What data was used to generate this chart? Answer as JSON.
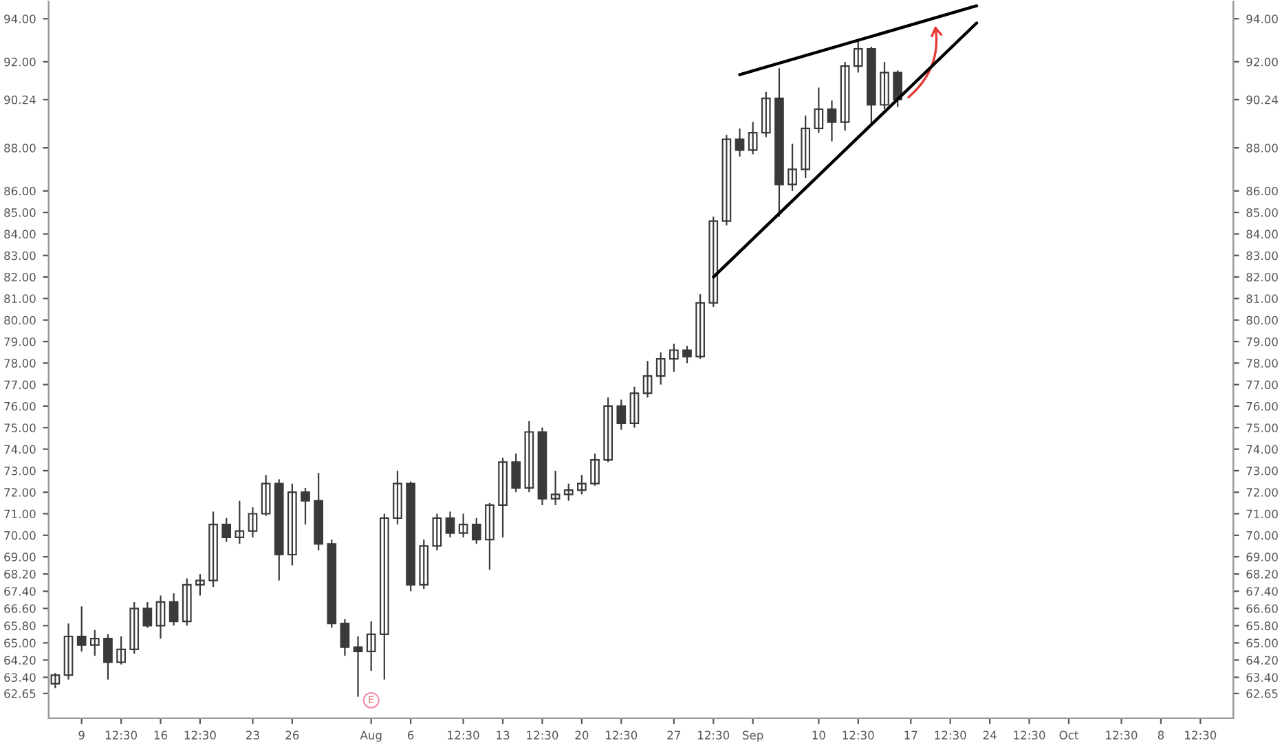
{
  "chart_data": {
    "type": "candlestick",
    "categories": [
      null,
      null,
      "9",
      null,
      null,
      "12:30",
      null,
      null,
      "16",
      null,
      null,
      "12:30",
      null,
      null,
      null,
      "23",
      null,
      null,
      "26",
      null,
      null,
      null,
      null,
      null,
      "Aug",
      null,
      null,
      "6",
      null,
      null,
      null,
      "12:30",
      null,
      null,
      "13",
      null,
      null,
      "12:30",
      null,
      null,
      "20",
      null,
      null,
      "12:30",
      null,
      null,
      null,
      "27",
      null,
      null,
      "12:30",
      null,
      null,
      "Sep",
      null,
      null,
      null,
      null,
      "10",
      null,
      null,
      "12:30",
      null,
      null,
      null,
      "17",
      null,
      null,
      "12:30",
      null,
      null,
      "24",
      null,
      null,
      "12:30",
      null,
      null,
      "Oct",
      null,
      null,
      null,
      "12:30",
      null,
      null,
      "8",
      null,
      null,
      "12:30",
      null,
      null
    ],
    "series": [
      {
        "color": "#3a3a3a",
        "ohlc": [
          [
            63.1,
            63.6,
            62.9,
            63.5
          ],
          [
            63.5,
            65.9,
            63.3,
            65.3
          ],
          [
            65.3,
            66.7,
            64.6,
            64.9
          ],
          [
            64.9,
            65.6,
            64.4,
            65.2
          ],
          [
            65.2,
            65.4,
            63.3,
            64.1
          ],
          [
            64.1,
            65.3,
            64.0,
            64.7
          ],
          [
            64.7,
            66.9,
            64.5,
            66.6
          ],
          [
            66.6,
            66.9,
            65.7,
            65.8
          ],
          [
            65.8,
            67.2,
            65.2,
            66.9
          ],
          [
            66.9,
            67.3,
            65.8,
            66.0
          ],
          [
            66.0,
            68.0,
            65.8,
            67.7
          ],
          [
            67.7,
            68.2,
            67.2,
            67.9
          ],
          [
            67.9,
            71.1,
            67.6,
            70.5
          ],
          [
            70.5,
            70.8,
            69.7,
            69.9
          ],
          [
            69.9,
            71.6,
            69.6,
            70.2
          ],
          [
            70.2,
            71.3,
            69.9,
            71.0
          ],
          [
            71.0,
            72.8,
            70.9,
            72.4
          ],
          [
            72.4,
            72.6,
            67.9,
            69.1
          ],
          [
            69.1,
            72.4,
            68.6,
            72.0
          ],
          [
            72.0,
            72.2,
            70.5,
            71.6
          ],
          [
            71.6,
            72.9,
            69.3,
            69.6
          ],
          [
            69.6,
            69.8,
            65.7,
            65.9
          ],
          [
            65.9,
            66.1,
            64.4,
            64.8
          ],
          [
            64.8,
            65.3,
            62.5,
            64.6
          ],
          [
            64.6,
            66.0,
            63.7,
            65.4
          ],
          [
            65.4,
            71.0,
            63.3,
            70.8
          ],
          [
            70.8,
            73.0,
            70.5,
            72.4
          ],
          [
            72.4,
            72.5,
            67.4,
            67.7
          ],
          [
            67.7,
            69.8,
            67.5,
            69.5
          ],
          [
            69.5,
            71.0,
            69.3,
            70.8
          ],
          [
            70.8,
            71.1,
            69.9,
            70.1
          ],
          [
            70.1,
            71.0,
            69.9,
            70.5
          ],
          [
            70.5,
            70.8,
            69.6,
            69.8
          ],
          [
            69.8,
            71.5,
            68.4,
            71.4
          ],
          [
            71.4,
            73.6,
            69.9,
            73.4
          ],
          [
            73.4,
            73.8,
            72.0,
            72.2
          ],
          [
            72.2,
            75.3,
            72.0,
            74.8
          ],
          [
            74.8,
            75.0,
            71.4,
            71.7
          ],
          [
            71.7,
            73.0,
            71.4,
            71.9
          ],
          [
            71.9,
            72.4,
            71.6,
            72.1
          ],
          [
            72.1,
            72.8,
            71.9,
            72.4
          ],
          [
            72.4,
            73.8,
            72.3,
            73.5
          ],
          [
            73.5,
            76.4,
            73.4,
            76.0
          ],
          [
            76.0,
            76.3,
            74.9,
            75.2
          ],
          [
            75.2,
            76.9,
            75.0,
            76.6
          ],
          [
            76.6,
            78.1,
            76.4,
            77.4
          ],
          [
            77.4,
            78.5,
            77.0,
            78.2
          ],
          [
            78.2,
            78.9,
            77.6,
            78.6
          ],
          [
            78.6,
            78.8,
            78.0,
            78.3
          ],
          [
            78.3,
            81.2,
            78.2,
            80.8
          ],
          [
            80.8,
            84.8,
            80.6,
            84.6
          ],
          [
            84.6,
            88.6,
            84.4,
            88.4
          ],
          [
            88.4,
            88.9,
            87.6,
            87.9
          ],
          [
            87.9,
            89.2,
            87.7,
            88.7
          ],
          [
            88.7,
            90.6,
            88.5,
            90.3
          ],
          [
            90.3,
            91.7,
            84.8,
            86.3
          ],
          [
            86.3,
            88.2,
            86.0,
            87.0
          ],
          [
            87.0,
            89.5,
            86.6,
            88.9
          ],
          [
            88.9,
            90.8,
            88.7,
            89.8
          ],
          [
            89.8,
            90.2,
            88.3,
            89.2
          ],
          [
            89.2,
            92.0,
            88.8,
            91.8
          ],
          [
            91.8,
            93.0,
            91.5,
            92.6
          ],
          [
            92.6,
            92.7,
            89.1,
            90.0
          ],
          [
            90.0,
            92.0,
            89.8,
            91.5
          ],
          [
            91.5,
            91.6,
            89.9,
            90.24
          ],
          null,
          null,
          null,
          null,
          null,
          null,
          null,
          null,
          null,
          null,
          null,
          null,
          null,
          null,
          null,
          null,
          null,
          null,
          null,
          null,
          null,
          null,
          null,
          null,
          null
        ]
      },
      {
        "type": "line",
        "color": "#000000",
        "values": [
          null,
          null,
          null,
          null,
          null,
          null,
          null,
          null,
          null,
          null,
          null,
          null,
          null,
          null,
          null,
          null,
          null,
          null,
          null,
          null,
          null,
          null,
          null,
          null,
          null,
          null,
          null,
          null,
          null,
          null,
          null,
          null,
          null,
          null,
          null,
          null,
          null,
          null,
          null,
          null,
          null,
          null,
          null,
          null,
          null,
          null,
          null,
          null,
          null,
          null,
          null,
          null,
          91.4,
          null,
          null,
          null,
          null,
          null,
          null,
          null,
          null,
          null,
          null,
          null,
          null,
          null,
          null,
          null,
          null,
          null,
          94.6,
          null,
          null,
          null,
          null,
          null,
          null,
          null,
          null,
          null,
          null,
          null,
          null,
          null,
          null,
          null,
          null,
          null,
          null,
          null
        ]
      },
      {
        "type": "line",
        "color": "#000000",
        "values": [
          null,
          null,
          null,
          null,
          null,
          null,
          null,
          null,
          null,
          null,
          null,
          null,
          null,
          null,
          null,
          null,
          null,
          null,
          null,
          null,
          null,
          null,
          null,
          null,
          null,
          null,
          null,
          null,
          null,
          null,
          null,
          null,
          null,
          null,
          null,
          null,
          null,
          null,
          null,
          null,
          null,
          null,
          null,
          null,
          null,
          null,
          null,
          null,
          null,
          null,
          82.0,
          null,
          null,
          null,
          null,
          null,
          null,
          null,
          null,
          null,
          null,
          null,
          null,
          null,
          null,
          null,
          null,
          null,
          null,
          null,
          93.8,
          null,
          null,
          null,
          null,
          null,
          null,
          null,
          null,
          null,
          null,
          null,
          null,
          null,
          null,
          null,
          null,
          null,
          null,
          null
        ]
      }
    ],
    "ylim": [
      61.5,
      94.8
    ],
    "yticks": [
      {
        "value": 94,
        "label": "94.00"
      },
      {
        "value": 92,
        "label": "92.00"
      },
      {
        "value": 90.24,
        "label": "90.24"
      },
      {
        "value": 88,
        "label": "88.00"
      },
      {
        "value": 86,
        "label": "86.00"
      },
      {
        "value": 85,
        "label": "85.00"
      },
      {
        "value": 84,
        "label": "84.00"
      },
      {
        "value": 83,
        "label": "83.00"
      },
      {
        "value": 82,
        "label": "82.00"
      },
      {
        "value": 81,
        "label": "81.00"
      },
      {
        "value": 80,
        "label": "80.00"
      },
      {
        "value": 79,
        "label": "79.00"
      },
      {
        "value": 78,
        "label": "78.00"
      },
      {
        "value": 77,
        "label": "77.00"
      },
      {
        "value": 76,
        "label": "76.00"
      },
      {
        "value": 75,
        "label": "75.00"
      },
      {
        "value": 74,
        "label": "74.00"
      },
      {
        "value": 73,
        "label": "73.00"
      },
      {
        "value": 72,
        "label": "72.00"
      },
      {
        "value": 71,
        "label": "71.00"
      },
      {
        "value": 70,
        "label": "70.00"
      },
      {
        "value": 69,
        "label": "69.00"
      },
      {
        "value": 68.2,
        "label": "68.20"
      },
      {
        "value": 67.4,
        "label": "67.40"
      },
      {
        "value": 66.6,
        "label": "66.60"
      },
      {
        "value": 65.8,
        "label": "65.80"
      },
      {
        "value": 65,
        "label": "65.00"
      },
      {
        "value": 64.2,
        "label": "64.20"
      },
      {
        "value": 63.4,
        "label": "63.40"
      },
      {
        "value": 62.65,
        "label": "62.65"
      }
    ],
    "y2lim": [
      61.5,
      94.8
    ],
    "y2ticks": [
      {
        "value": 94,
        "label": "94.00"
      },
      {
        "value": 92,
        "label": "92.00"
      },
      {
        "value": 90.24,
        "label": "90.24"
      },
      {
        "value": 88,
        "label": "88.00"
      },
      {
        "value": 86,
        "label": "86.00"
      },
      {
        "value": 85,
        "label": "85.00"
      },
      {
        "value": 84,
        "label": "84.00"
      },
      {
        "value": 83,
        "label": "83.00"
      },
      {
        "value": 82,
        "label": "82.00"
      },
      {
        "value": 81,
        "label": "81.00"
      },
      {
        "value": 80,
        "label": "80.00"
      },
      {
        "value": 79,
        "label": "79.00"
      },
      {
        "value": 78,
        "label": "78.00"
      },
      {
        "value": 77,
        "label": "77.00"
      },
      {
        "value": 76,
        "label": "76.00"
      },
      {
        "value": 75,
        "label": "75.00"
      },
      {
        "value": 74,
        "label": "74.00"
      },
      {
        "value": 73,
        "label": "73.00"
      },
      {
        "value": 72,
        "label": "72.00"
      },
      {
        "value": 71,
        "label": "71.00"
      },
      {
        "value": 70,
        "label": "70.00"
      },
      {
        "value": 69,
        "label": "69.00"
      },
      {
        "value": 68.2,
        "label": "68.20"
      },
      {
        "value": 67.4,
        "label": "67.40"
      },
      {
        "value": 66.6,
        "label": "66.60"
      },
      {
        "value": 65.8,
        "label": "65.80"
      },
      {
        "value": 65,
        "label": "65.00"
      },
      {
        "value": 64.2,
        "label": "64.20"
      },
      {
        "value": 63.4,
        "label": "63.40"
      },
      {
        "value": 62.65,
        "label": "62.65"
      }
    ],
    "annotations": [
      {
        "text": "E",
        "x": "Aug"
      }
    ],
    "grid": false,
    "legend": false
  }
}
